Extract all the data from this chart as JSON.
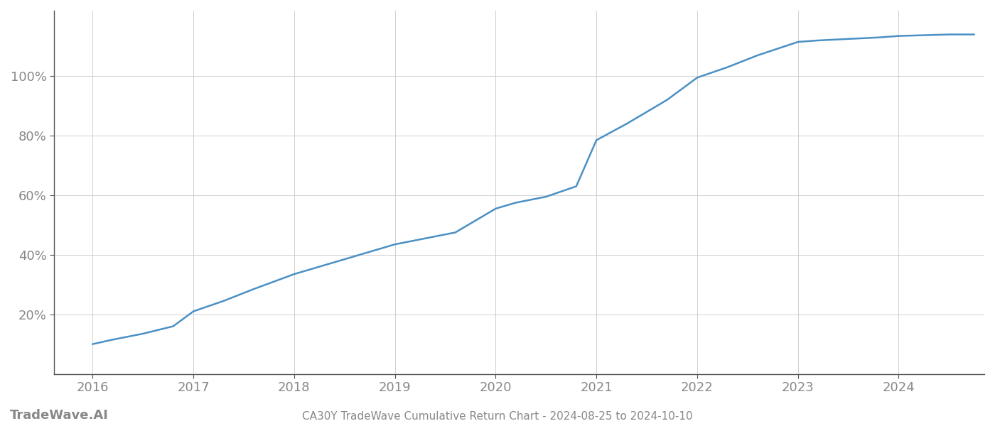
{
  "title": "CA30Y TradeWave Cumulative Return Chart - 2024-08-25 to 2024-10-10",
  "watermark": "TradeWave.AI",
  "line_color": "#4a90c4",
  "line_width": 1.8,
  "background_color": "#ffffff",
  "grid_color": "#cccccc",
  "x_values": [
    2016.0,
    2016.2,
    2016.5,
    2016.8,
    2017.0,
    2017.3,
    2017.6,
    2018.0,
    2018.3,
    2018.6,
    2019.0,
    2019.3,
    2019.6,
    2020.0,
    2020.2,
    2020.5,
    2020.8,
    2021.0,
    2021.3,
    2021.7,
    2022.0,
    2022.3,
    2022.6,
    2023.0,
    2023.2,
    2023.5,
    2023.8,
    2024.0,
    2024.5,
    2024.75
  ],
  "y_values": [
    0.1,
    0.115,
    0.135,
    0.16,
    0.21,
    0.245,
    0.285,
    0.335,
    0.365,
    0.395,
    0.435,
    0.455,
    0.475,
    0.555,
    0.575,
    0.595,
    0.63,
    0.785,
    0.84,
    0.92,
    0.995,
    1.03,
    1.07,
    1.115,
    1.12,
    1.125,
    1.13,
    1.135,
    1.14,
    1.14
  ],
  "xlim": [
    2015.62,
    2024.85
  ],
  "ylim": [
    0.0,
    1.22
  ],
  "xticks": [
    2016,
    2017,
    2018,
    2019,
    2020,
    2021,
    2022,
    2023,
    2024
  ],
  "yticks": [
    0.2,
    0.4,
    0.6,
    0.8,
    1.0
  ],
  "ytick_labels": [
    "20%",
    "40%",
    "60%",
    "80%",
    "100%"
  ],
  "tick_color": "#888888",
  "tick_fontsize": 13,
  "title_fontsize": 11,
  "watermark_fontsize": 13
}
